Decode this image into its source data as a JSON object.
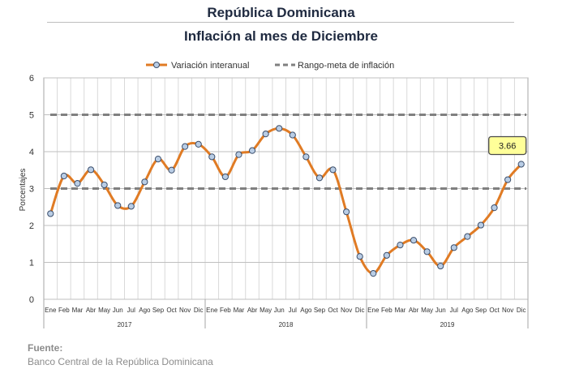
{
  "title": "República Dominicana",
  "subtitle": "Inflación al mes de Diciembre",
  "footer": {
    "label": "Fuente:",
    "source": "Banco Central de la República Dominicana"
  },
  "colors": {
    "series": "#e07b24",
    "marker_fill": "#b9cde5",
    "marker_stroke": "#3b4e6b",
    "target": "#808080",
    "callout_fill": "#ffff99"
  },
  "chart_data": {
    "type": "line",
    "ylabel": "Porcentajes",
    "ylim": [
      0,
      6
    ],
    "yticks": [
      "0",
      "1",
      "2",
      "3",
      "4",
      "5",
      "6"
    ],
    "grid": true,
    "legend_position": "top",
    "month_labels": [
      "Ene",
      "Feb",
      "Mar",
      "Abr",
      "May",
      "Jun",
      "Jul",
      "Ago",
      "Sep",
      "Oct",
      "Nov",
      "Dic"
    ],
    "years": [
      "2017",
      "2018",
      "2019"
    ],
    "series": [
      {
        "name": "Variación interanual",
        "style": "line-with-markers",
        "values": [
          2.32,
          3.34,
          3.14,
          3.51,
          3.1,
          2.54,
          2.52,
          3.18,
          3.8,
          3.5,
          4.14,
          4.2,
          3.86,
          3.32,
          3.92,
          4.03,
          4.48,
          4.63,
          4.45,
          3.86,
          3.29,
          3.51,
          2.37,
          1.16,
          0.7,
          1.19,
          1.47,
          1.6,
          1.29,
          0.9,
          1.4,
          1.7,
          2.01,
          2.48,
          3.24,
          3.66
        ]
      },
      {
        "name": "Rango-meta de inflación",
        "style": "dashed",
        "values_lower": 3,
        "values_upper": 5
      }
    ],
    "annotations": [
      {
        "text": "3.66",
        "target": "last-point"
      }
    ]
  }
}
